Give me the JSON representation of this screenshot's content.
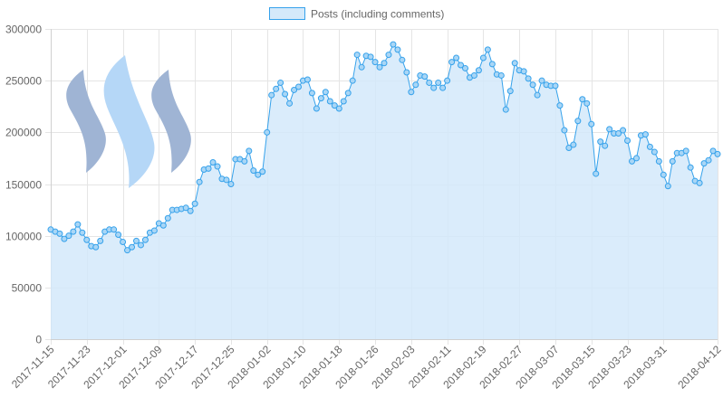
{
  "chart_data": {
    "type": "area",
    "legend": {
      "label": "Posts (including comments)",
      "position": "top"
    },
    "colors": {
      "line": "#36a2eb",
      "fill": "#d4e9fa",
      "point_fill": "#a9d6f6",
      "grid": "#e5e5e5",
      "logo_dark": "#9fb4d4",
      "logo_light": "#b5d7f7"
    },
    "grid": true,
    "x_start": "2017-11-15",
    "x_end": "2018-04-12",
    "x_ticks": [
      "2017-11-15",
      "2017-11-23",
      "2017-12-01",
      "2017-12-09",
      "2017-12-17",
      "2017-12-25",
      "2018-01-02",
      "2018-01-10",
      "2018-01-18",
      "2018-01-26",
      "2018-02-03",
      "2018-02-11",
      "2018-02-19",
      "2018-02-27",
      "2018-03-07",
      "2018-03-15",
      "2018-03-23",
      "2018-03-31",
      "2018-04-12"
    ],
    "y_ticks": [
      0,
      50000,
      100000,
      150000,
      200000,
      250000,
      300000
    ],
    "y_tick_labels": [
      "0",
      "50000",
      "100000",
      "150000",
      "200000",
      "250000",
      "300000"
    ],
    "ylim": [
      0,
      300000
    ],
    "values": [
      106000,
      104000,
      102000,
      97000,
      100000,
      104000,
      111000,
      103000,
      96000,
      90000,
      89000,
      95000,
      104000,
      106000,
      106000,
      101000,
      94000,
      86000,
      89000,
      95000,
      91000,
      96000,
      103000,
      105000,
      112000,
      110000,
      117000,
      125000,
      125000,
      126000,
      127000,
      124000,
      131000,
      152000,
      164000,
      165000,
      171000,
      167000,
      155000,
      154000,
      150000,
      174000,
      174000,
      172000,
      182000,
      163000,
      159000,
      162000,
      200000,
      236000,
      242000,
      248000,
      237000,
      228000,
      241000,
      244000,
      250000,
      251000,
      238000,
      223000,
      233000,
      239000,
      230000,
      226000,
      223000,
      230000,
      238000,
      250000,
      275000,
      263000,
      274000,
      273000,
      268000,
      263000,
      267000,
      275000,
      285000,
      280000,
      270000,
      258000,
      239000,
      246000,
      255000,
      254000,
      248000,
      243000,
      248000,
      243000,
      250000,
      268000,
      272000,
      265000,
      262000,
      253000,
      255000,
      260000,
      272000,
      280000,
      266000,
      256000,
      255000,
      222000,
      240000,
      267000,
      260000,
      259000,
      252000,
      246000,
      236000,
      250000,
      246000,
      245000,
      245000,
      226000,
      202000,
      185000,
      188000,
      211000,
      232000,
      228000,
      208000,
      160000,
      191000,
      187000,
      203000,
      199000,
      199000,
      202000,
      192000,
      172000,
      175000,
      197000,
      198000,
      186000,
      181000,
      172000,
      159000,
      148000,
      172000,
      180000,
      180000,
      182000,
      166000,
      153000,
      151000,
      170000,
      173000,
      182000,
      179000
    ]
  }
}
